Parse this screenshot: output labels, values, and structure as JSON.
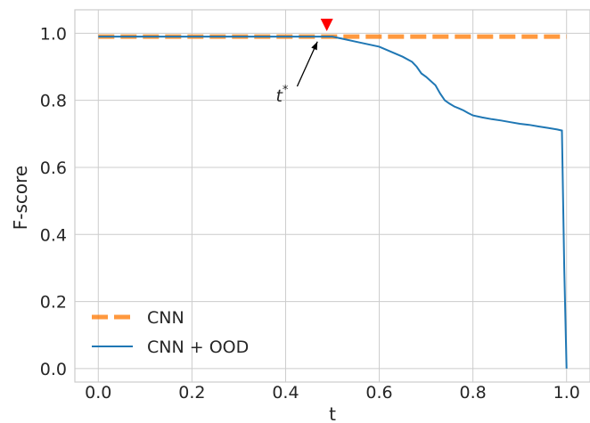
{
  "chart_data": {
    "type": "line",
    "title": "",
    "xlabel": "t",
    "ylabel": "F-score",
    "xlim": [
      -0.05,
      1.05
    ],
    "ylim": [
      -0.04,
      1.07
    ],
    "xticks": [
      0.0,
      0.2,
      0.4,
      0.6,
      0.8,
      1.0
    ],
    "xtick_labels": [
      "0.0",
      "0.2",
      "0.4",
      "0.6",
      "0.8",
      "1.0"
    ],
    "yticks": [
      0.0,
      0.2,
      0.4,
      0.6,
      0.8,
      1.0
    ],
    "ytick_labels": [
      "0.0",
      "0.2",
      "0.4",
      "0.6",
      "0.8",
      "1.0"
    ],
    "grid": true,
    "legend_position": "lower-left",
    "series": [
      {
        "name": "CNN",
        "color": "#ff7f0e",
        "style": "dashed",
        "x": [
          0.0,
          1.0
        ],
        "y": [
          0.99,
          0.99
        ]
      },
      {
        "name": "CNN + OOD",
        "color": "#1f77b4",
        "style": "solid",
        "x": [
          0.0,
          0.1,
          0.2,
          0.3,
          0.4,
          0.5,
          0.55,
          0.6,
          0.65,
          0.67,
          0.68,
          0.69,
          0.7,
          0.72,
          0.73,
          0.74,
          0.75,
          0.76,
          0.77,
          0.78,
          0.79,
          0.8,
          0.82,
          0.84,
          0.86,
          0.88,
          0.9,
          0.92,
          0.94,
          0.96,
          0.98,
          0.99,
          0.995,
          1.0
        ],
        "y": [
          0.99,
          0.99,
          0.99,
          0.99,
          0.99,
          0.99,
          0.975,
          0.96,
          0.93,
          0.915,
          0.9,
          0.88,
          0.87,
          0.845,
          0.82,
          0.8,
          0.79,
          0.782,
          0.776,
          0.77,
          0.762,
          0.755,
          0.749,
          0.744,
          0.74,
          0.735,
          0.73,
          0.727,
          0.722,
          0.718,
          0.713,
          0.71,
          0.3,
          0.0
        ]
      }
    ],
    "marker": {
      "x": 0.488,
      "y": 1.025,
      "shape": "triangle-down",
      "color": "#ff0000"
    },
    "annotation": {
      "text": "t*",
      "base": "t",
      "sup": "*",
      "text_x": 0.4,
      "text_y": 0.815,
      "arrow_to_x": 0.468,
      "arrow_to_y": 0.975
    }
  }
}
